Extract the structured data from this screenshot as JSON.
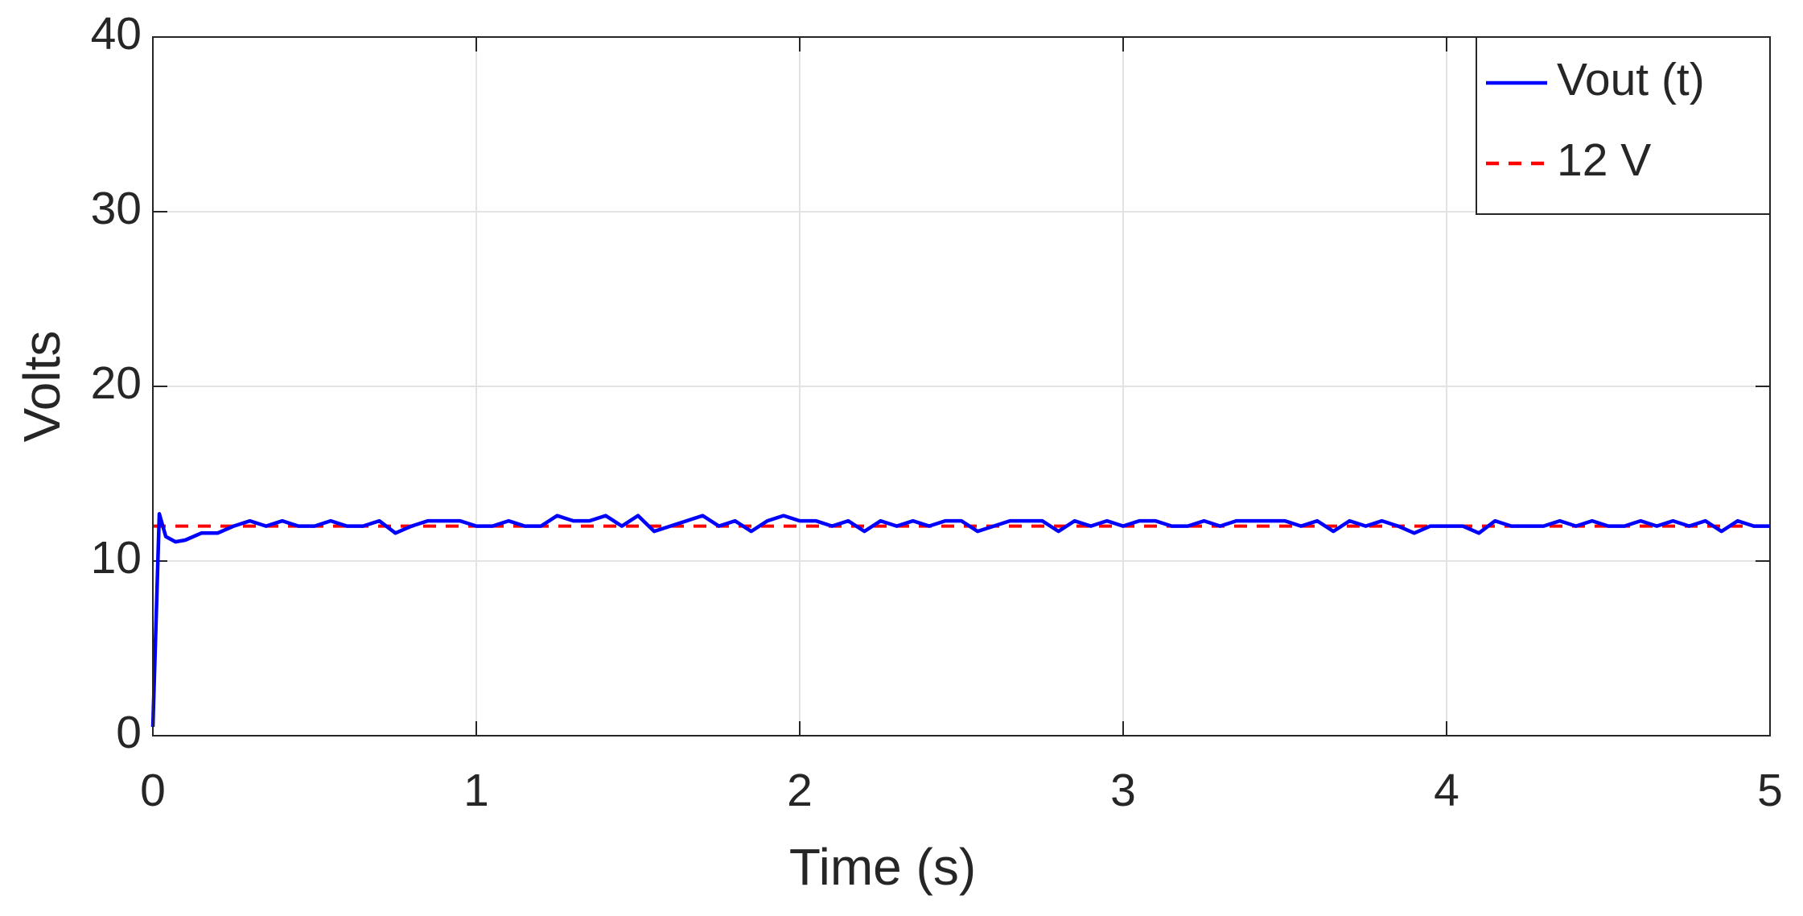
{
  "chart_data": {
    "type": "line",
    "xlabel": "Time (s)",
    "ylabel": "Volts",
    "xlim": [
      0,
      5
    ],
    "xticks": [
      0,
      1,
      2,
      3,
      4,
      5
    ],
    "ylim": [
      0,
      40
    ],
    "yticks": [
      0,
      10,
      20,
      30,
      40
    ],
    "grid": true,
    "legend": "upper right",
    "series": [
      {
        "name": "Vout (t)",
        "color": "#0000ff",
        "dash": false,
        "x": [
          0,
          0.02,
          0.04,
          0.07,
          0.1,
          0.15,
          0.2,
          0.25,
          0.3,
          0.35,
          0.4,
          0.45,
          0.5,
          0.55,
          0.6,
          0.65,
          0.7,
          0.75,
          0.8,
          0.85,
          0.9,
          0.95,
          1.0,
          1.05,
          1.1,
          1.15,
          1.2,
          1.25,
          1.3,
          1.35,
          1.4,
          1.45,
          1.5,
          1.55,
          1.6,
          1.65,
          1.7,
          1.75,
          1.8,
          1.85,
          1.9,
          1.95,
          2.0,
          2.05,
          2.1,
          2.15,
          2.2,
          2.25,
          2.3,
          2.35,
          2.4,
          2.45,
          2.5,
          2.55,
          2.6,
          2.65,
          2.7,
          2.75,
          2.8,
          2.85,
          2.9,
          2.95,
          3.0,
          3.05,
          3.1,
          3.15,
          3.2,
          3.25,
          3.3,
          3.35,
          3.4,
          3.45,
          3.5,
          3.55,
          3.6,
          3.65,
          3.7,
          3.75,
          3.8,
          3.85,
          3.9,
          3.95,
          4.0,
          4.05,
          4.1,
          4.15,
          4.2,
          4.25,
          4.3,
          4.35,
          4.4,
          4.45,
          4.5,
          4.55,
          4.6,
          4.65,
          4.7,
          4.75,
          4.8,
          4.85,
          4.9,
          4.95,
          5.0
        ],
        "values": [
          0.5,
          12.7,
          11.4,
          11.1,
          11.2,
          11.6,
          11.6,
          12.0,
          12.3,
          12.0,
          12.3,
          12.0,
          12.0,
          12.3,
          12.0,
          12.0,
          12.3,
          11.6,
          12.0,
          12.3,
          12.3,
          12.3,
          12.0,
          12.0,
          12.3,
          12.0,
          12.0,
          12.6,
          12.3,
          12.3,
          12.6,
          12.0,
          12.6,
          11.7,
          12.0,
          12.3,
          12.6,
          12.0,
          12.3,
          11.7,
          12.3,
          12.6,
          12.3,
          12.3,
          12.0,
          12.3,
          11.7,
          12.3,
          12.0,
          12.3,
          12.0,
          12.3,
          12.3,
          11.7,
          12.0,
          12.3,
          12.3,
          12.3,
          11.7,
          12.3,
          12.0,
          12.3,
          12.0,
          12.3,
          12.3,
          12.0,
          12.0,
          12.3,
          12.0,
          12.3,
          12.3,
          12.3,
          12.3,
          12.0,
          12.3,
          11.7,
          12.3,
          12.0,
          12.3,
          12.0,
          11.6,
          12.0,
          12.0,
          12.0,
          11.6,
          12.3,
          12.0,
          12.0,
          12.0,
          12.3,
          12.0,
          12.3,
          12.0,
          12.0,
          12.3,
          12.0,
          12.3,
          12.0,
          12.3,
          11.7,
          12.3,
          12.0,
          12.0
        ]
      },
      {
        "name": "12 V",
        "color": "#ff0000",
        "dash": true,
        "x": [
          0,
          5
        ],
        "values": [
          12,
          12
        ]
      }
    ]
  }
}
